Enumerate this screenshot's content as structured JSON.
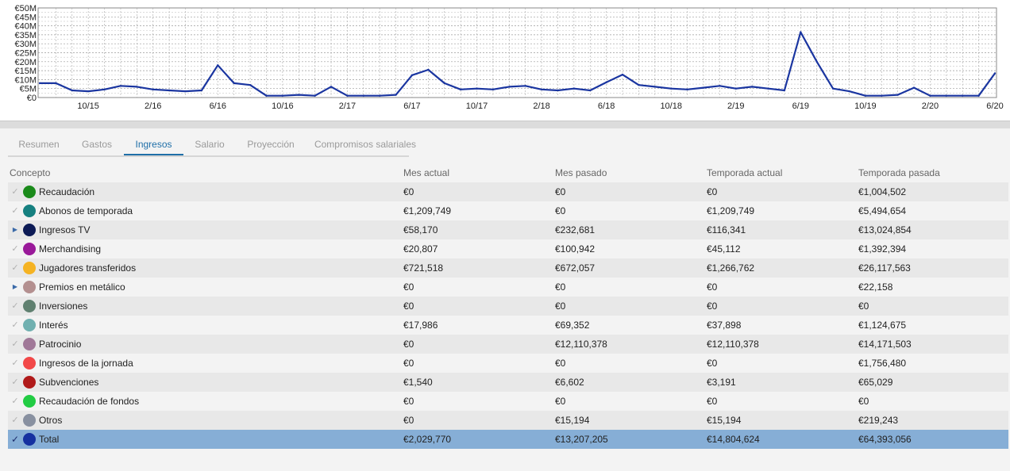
{
  "chart_data": {
    "type": "line",
    "y_ticks": [
      "€50M",
      "€45M",
      "€40M",
      "€35M",
      "€30M",
      "€25M",
      "€20M",
      "€15M",
      "€10M",
      "€5M",
      "€0"
    ],
    "x_ticks": [
      {
        "label": "10/15",
        "index": 3
      },
      {
        "label": "2/16",
        "index": 7
      },
      {
        "label": "6/16",
        "index": 11
      },
      {
        "label": "10/16",
        "index": 15
      },
      {
        "label": "2/17",
        "index": 19
      },
      {
        "label": "6/17",
        "index": 23
      },
      {
        "label": "10/17",
        "index": 27
      },
      {
        "label": "2/18",
        "index": 31
      },
      {
        "label": "6/18",
        "index": 35
      },
      {
        "label": "10/18",
        "index": 39
      },
      {
        "label": "2/19",
        "index": 43
      },
      {
        "label": "6/19",
        "index": 47
      },
      {
        "label": "10/19",
        "index": 51
      },
      {
        "label": "2/20",
        "index": 55
      },
      {
        "label": "6/20",
        "index": 59
      }
    ],
    "ylim": [
      0,
      50
    ],
    "y_unit": "€M",
    "grid": true,
    "series": [
      {
        "color": "#1a35a0",
        "values": [
          8,
          8,
          4,
          3.5,
          4.5,
          6.5,
          6,
          4.5,
          4,
          3.5,
          4,
          18,
          8,
          7,
          1,
          1,
          1.5,
          1,
          6,
          1,
          1,
          1,
          1.5,
          12.5,
          15.5,
          8,
          4.5,
          5,
          4.5,
          6,
          6.5,
          4.5,
          4,
          5,
          4,
          8.5,
          12.8,
          7,
          6,
          5,
          4.5,
          5.5,
          6.5,
          5,
          6,
          5,
          4,
          36.5,
          20,
          5,
          3.5,
          1,
          1,
          1.5,
          5.5,
          1,
          1,
          1,
          1,
          13.5
        ]
      }
    ]
  },
  "tabs": [
    "Resumen",
    "Gastos",
    "Ingresos",
    "Salario",
    "Proyección",
    "Compromisos salariales"
  ],
  "active_tab": 2,
  "table": {
    "headers": [
      "Concepto",
      "Mes actual",
      "Mes pasado",
      "Temporada actual",
      "Temporada pasada"
    ],
    "rows": [
      {
        "marker": "tick",
        "color": "#1a8a1a",
        "name": "Recaudación",
        "values": [
          "€0",
          "€0",
          "€0",
          "€1,004,502"
        ]
      },
      {
        "marker": "tick",
        "color": "#168080",
        "name": "Abonos de temporada",
        "values": [
          "€1,209,749",
          "€0",
          "€1,209,749",
          "€5,494,654"
        ]
      },
      {
        "marker": "arrow",
        "color": "#0c1a55",
        "name": "Ingresos TV",
        "values": [
          "€58,170",
          "€232,681",
          "€116,341",
          "€13,024,854"
        ]
      },
      {
        "marker": "tick",
        "color": "#9a1a9a",
        "name": "Merchandising",
        "values": [
          "€20,807",
          "€100,942",
          "€45,112",
          "€1,392,394"
        ]
      },
      {
        "marker": "tick",
        "color": "#f5b323",
        "name": "Jugadores transferidos",
        "values": [
          "€721,518",
          "€672,057",
          "€1,266,762",
          "€26,117,563"
        ]
      },
      {
        "marker": "arrow",
        "color": "#b49090",
        "name": "Premios en metálico",
        "values": [
          "€0",
          "€0",
          "€0",
          "€22,158"
        ]
      },
      {
        "marker": "tick",
        "color": "#608070",
        "name": "Inversiones",
        "values": [
          "€0",
          "€0",
          "€0",
          "€0"
        ]
      },
      {
        "marker": "tick",
        "color": "#70b0b0",
        "name": "Interés",
        "values": [
          "€17,986",
          "€69,352",
          "€37,898",
          "€1,124,675"
        ]
      },
      {
        "marker": "tick",
        "color": "#a07898",
        "name": "Patrocinio",
        "values": [
          "€0",
          "€12,110,378",
          "€12,110,378",
          "€14,171,503"
        ]
      },
      {
        "marker": "tick",
        "color": "#f24848",
        "name": "Ingresos de la jornada",
        "values": [
          "€0",
          "€0",
          "€0",
          "€1,756,480"
        ]
      },
      {
        "marker": "tick",
        "color": "#b01a1a",
        "name": "Subvenciones",
        "values": [
          "€1,540",
          "€6,602",
          "€3,191",
          "€65,029"
        ]
      },
      {
        "marker": "tick",
        "color": "#22cc44",
        "name": "Recaudación de fondos",
        "values": [
          "€0",
          "€0",
          "€0",
          "€0"
        ]
      },
      {
        "marker": "tick",
        "color": "#8890a0",
        "name": "Otros",
        "values": [
          "€0",
          "€15,194",
          "€15,194",
          "€219,243"
        ]
      },
      {
        "marker": "check",
        "color": "#1530a0",
        "name": "Total",
        "values": [
          "€2,029,770",
          "€13,207,205",
          "€14,804,624",
          "€64,393,056"
        ]
      }
    ]
  }
}
